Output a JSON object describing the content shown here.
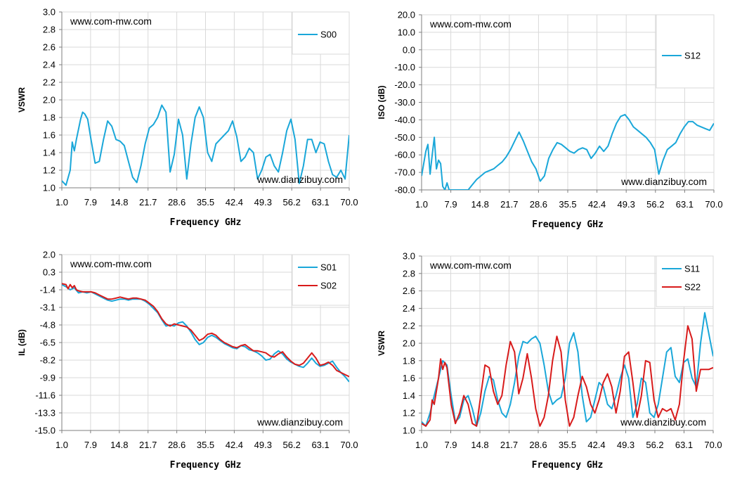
{
  "chart_data": [
    {
      "type": "line",
      "watermark_top": "www.com-mw.com",
      "watermark_bottom": "www.dianzibuy.com",
      "xlabel": "Frequency GHz",
      "ylabel": "VSWR",
      "xlim": [
        1.0,
        70.0
      ],
      "ylim": [
        1.0,
        3.0
      ],
      "x_ticks": [
        "1.0",
        "7.9",
        "14.8",
        "21.7",
        "28.6",
        "35.5",
        "42.4",
        "49.3",
        "56.2",
        "63.1",
        "70.0"
      ],
      "y_ticks": [
        "1.0",
        "1.2",
        "1.4",
        "1.6",
        "1.8",
        "2.0",
        "2.2",
        "2.4",
        "2.6",
        "2.8",
        "3.0"
      ],
      "grid": true,
      "legend_position": "top-right",
      "series": [
        {
          "name": "S00",
          "color": "#1aa7d9",
          "x": [
            1.0,
            2.0,
            3.0,
            3.5,
            4.0,
            4.5,
            5.5,
            6.0,
            6.5,
            7.2,
            8.0,
            9.0,
            10.0,
            11.0,
            12.0,
            13.0,
            14.0,
            15.0,
            16.0,
            17.0,
            18.0,
            19.0,
            20.0,
            21.0,
            22.0,
            23.0,
            24.0,
            25.0,
            26.0,
            27.0,
            28.0,
            29.0,
            30.0,
            31.0,
            32.0,
            33.0,
            34.0,
            35.0,
            36.0,
            37.0,
            38.0,
            39.0,
            40.0,
            41.0,
            42.0,
            43.0,
            44.0,
            45.0,
            46.0,
            47.0,
            48.0,
            49.0,
            50.0,
            51.0,
            52.0,
            53.0,
            54.0,
            55.0,
            56.0,
            57.0,
            58.0,
            59.0,
            60.0,
            61.0,
            62.0,
            63.0,
            64.0,
            65.0,
            66.0,
            67.0,
            68.0,
            69.0,
            70.0
          ],
          "values": [
            1.08,
            1.03,
            1.2,
            1.52,
            1.42,
            1.55,
            1.78,
            1.86,
            1.84,
            1.78,
            1.55,
            1.28,
            1.3,
            1.55,
            1.76,
            1.7,
            1.55,
            1.53,
            1.48,
            1.3,
            1.12,
            1.06,
            1.25,
            1.5,
            1.68,
            1.72,
            1.8,
            1.94,
            1.86,
            1.18,
            1.38,
            1.78,
            1.6,
            1.1,
            1.5,
            1.8,
            1.92,
            1.8,
            1.4,
            1.3,
            1.5,
            1.55,
            1.6,
            1.65,
            1.76,
            1.58,
            1.3,
            1.35,
            1.45,
            1.4,
            1.1,
            1.2,
            1.35,
            1.38,
            1.25,
            1.18,
            1.4,
            1.65,
            1.78,
            1.55,
            1.05,
            1.25,
            1.55,
            1.55,
            1.4,
            1.52,
            1.5,
            1.3,
            1.15,
            1.12,
            1.2,
            1.1,
            1.6
          ]
        }
      ]
    },
    {
      "type": "line",
      "watermark_top": "www.com-mw.com",
      "watermark_bottom": "www.dianzibuy.com",
      "xlabel": "Frequency GHz",
      "ylabel": "ISO (dB)",
      "xlim": [
        1.0,
        70.0
      ],
      "ylim": [
        -80.0,
        20.0
      ],
      "x_ticks": [
        "1.0",
        "7.9",
        "14.8",
        "21.7",
        "28.6",
        "35.5",
        "42.4",
        "49.3",
        "56.2",
        "63.1",
        "70.0"
      ],
      "y_ticks": [
        "-80.0",
        "-70.0",
        "-60.0",
        "-50.0",
        "-40.0",
        "-30.0",
        "-20.0",
        "-10.0",
        "0.0",
        "10.0",
        "20.0"
      ],
      "grid": true,
      "legend_position": "top-right",
      "series": [
        {
          "name": "S12",
          "color": "#1aa7d9",
          "x": [
            1.0,
            2.0,
            2.5,
            3.0,
            3.5,
            4.0,
            4.5,
            5.0,
            5.5,
            6.0,
            6.5,
            7.0,
            7.5,
            9.0,
            11.0,
            12.0,
            13.0,
            14.0,
            15.0,
            16.0,
            17.0,
            18.0,
            19.0,
            20.0,
            21.0,
            22.0,
            23.0,
            24.0,
            25.0,
            26.0,
            27.0,
            28.0,
            29.0,
            30.0,
            31.0,
            32.0,
            33.0,
            34.0,
            35.0,
            36.0,
            37.0,
            38.0,
            39.0,
            40.0,
            41.0,
            42.0,
            43.0,
            44.0,
            45.0,
            46.0,
            47.0,
            48.0,
            49.0,
            50.0,
            51.0,
            52.0,
            53.0,
            54.0,
            55.0,
            56.0,
            57.0,
            58.0,
            59.0,
            60.0,
            61.0,
            62.0,
            63.0,
            64.0,
            65.0,
            66.0,
            67.0,
            68.0,
            69.0,
            70.0
          ],
          "values": [
            -72,
            -58,
            -54,
            -71,
            -60,
            -50,
            -68,
            -63,
            -65,
            -78,
            -80,
            -76,
            -80,
            -80,
            -80,
            -80,
            -77,
            -74,
            -72,
            -70,
            -69,
            -68,
            -66,
            -64,
            -61,
            -57,
            -52,
            -47,
            -52,
            -58,
            -64,
            -68,
            -75,
            -72,
            -62,
            -57,
            -53,
            -54,
            -56,
            -58,
            -59,
            -57,
            -56,
            -57,
            -62,
            -59,
            -55,
            -58,
            -55,
            -48,
            -42,
            -38,
            -37,
            -40,
            -44,
            -46,
            -48,
            -50,
            -53,
            -57,
            -71,
            -63,
            -57,
            -55,
            -53,
            -48,
            -44,
            -41,
            -41,
            -43,
            -44,
            -45,
            -46,
            -42
          ]
        }
      ]
    },
    {
      "type": "line",
      "watermark_top": "www.com-mw.com",
      "watermark_bottom": "www.dianzibuy.com",
      "xlabel": "Frequency GHz",
      "ylabel": "IL (dB)",
      "xlim": [
        1.0,
        70.0
      ],
      "ylim": [
        -15.0,
        2.0
      ],
      "x_ticks": [
        "1.0",
        "7.9",
        "14.8",
        "21.7",
        "28.6",
        "35.5",
        "42.4",
        "49.3",
        "56.2",
        "63.1",
        "70.0"
      ],
      "y_ticks": [
        "-15.0",
        "-13.3",
        "-11.6",
        "-9.9",
        "-8.2",
        "-6.5",
        "-4.8",
        "-3.1",
        "-1.4",
        "0.3",
        "2.0"
      ],
      "grid": true,
      "legend_position": "top-right",
      "series": [
        {
          "name": "S01",
          "color": "#1aa7d9",
          "x": [
            1.0,
            2.0,
            3.0,
            4.0,
            5.0,
            6.0,
            7.0,
            8.0,
            9.0,
            10.0,
            11.0,
            12.0,
            13.0,
            14.0,
            15.0,
            16.0,
            17.0,
            18.0,
            19.0,
            20.0,
            21.0,
            22.0,
            23.0,
            24.0,
            25.0,
            26.0,
            27.0,
            28.0,
            29.0,
            30.0,
            31.0,
            32.0,
            33.0,
            34.0,
            35.0,
            36.0,
            37.0,
            38.0,
            39.0,
            40.0,
            41.0,
            42.0,
            43.0,
            44.0,
            45.0,
            46.0,
            47.0,
            48.0,
            49.0,
            50.0,
            51.0,
            52.0,
            53.0,
            54.0,
            55.0,
            56.0,
            57.0,
            58.0,
            59.0,
            60.0,
            61.0,
            62.0,
            63.0,
            64.0,
            65.0,
            66.0,
            67.0,
            68.0,
            69.0,
            70.0
          ],
          "values": [
            -0.9,
            -1.1,
            -1.4,
            -1.2,
            -1.7,
            -1.6,
            -1.7,
            -1.6,
            -1.8,
            -2.0,
            -2.2,
            -2.4,
            -2.5,
            -2.4,
            -2.3,
            -2.3,
            -2.4,
            -2.3,
            -2.3,
            -2.3,
            -2.5,
            -2.8,
            -3.2,
            -3.6,
            -4.3,
            -4.9,
            -4.8,
            -4.9,
            -4.6,
            -4.5,
            -4.9,
            -5.5,
            -6.2,
            -6.7,
            -6.5,
            -6.0,
            -5.8,
            -6.0,
            -6.3,
            -6.6,
            -6.8,
            -7.0,
            -7.1,
            -6.8,
            -6.9,
            -7.2,
            -7.3,
            -7.5,
            -7.8,
            -8.2,
            -8.1,
            -7.6,
            -7.3,
            -7.6,
            -8.1,
            -8.4,
            -8.6,
            -8.8,
            -8.9,
            -8.5,
            -8.0,
            -8.5,
            -8.8,
            -8.7,
            -8.5,
            -8.3,
            -8.9,
            -9.4,
            -9.8,
            -10.3
          ]
        },
        {
          "name": "S02",
          "color": "#d81b1b",
          "x": [
            1.0,
            2.0,
            2.5,
            3.0,
            3.5,
            4.0,
            4.5,
            5.0,
            6.0,
            7.0,
            8.0,
            9.0,
            10.0,
            11.0,
            12.0,
            13.0,
            14.0,
            15.0,
            16.0,
            17.0,
            18.0,
            19.0,
            20.0,
            21.0,
            22.0,
            23.0,
            24.0,
            25.0,
            26.0,
            27.0,
            28.0,
            29.0,
            30.0,
            31.0,
            32.0,
            33.0,
            34.0,
            35.0,
            36.0,
            37.0,
            38.0,
            39.0,
            40.0,
            41.0,
            42.0,
            43.0,
            44.0,
            45.0,
            46.0,
            47.0,
            48.0,
            49.0,
            50.0,
            51.0,
            52.0,
            53.0,
            54.0,
            55.0,
            56.0,
            57.0,
            58.0,
            59.0,
            60.0,
            61.0,
            62.0,
            63.0,
            64.0,
            65.0,
            66.0,
            67.0,
            68.0,
            69.0,
            70.0
          ],
          "values": [
            -0.8,
            -0.9,
            -1.3,
            -0.9,
            -1.2,
            -1.0,
            -1.4,
            -1.5,
            -1.6,
            -1.6,
            -1.6,
            -1.7,
            -1.9,
            -2.1,
            -2.3,
            -2.3,
            -2.2,
            -2.1,
            -2.2,
            -2.3,
            -2.2,
            -2.2,
            -2.3,
            -2.4,
            -2.7,
            -3.0,
            -3.5,
            -4.2,
            -4.7,
            -4.9,
            -4.7,
            -4.8,
            -4.9,
            -5.0,
            -5.3,
            -5.8,
            -6.3,
            -6.1,
            -5.7,
            -5.6,
            -5.8,
            -6.2,
            -6.5,
            -6.7,
            -6.9,
            -7.0,
            -6.8,
            -6.7,
            -7.0,
            -7.3,
            -7.3,
            -7.4,
            -7.5,
            -7.8,
            -7.9,
            -7.6,
            -7.4,
            -7.9,
            -8.3,
            -8.6,
            -8.7,
            -8.5,
            -8.0,
            -7.5,
            -8.0,
            -8.7,
            -8.6,
            -8.4,
            -8.7,
            -9.2,
            -9.4,
            -9.6,
            -9.8
          ]
        }
      ]
    },
    {
      "type": "line",
      "watermark_top": "www.com-mw.com",
      "watermark_bottom": "www.dianzibuy.com",
      "xlabel": "Frequency GHz",
      "ylabel": "VSWR",
      "xlim": [
        1.0,
        70.0
      ],
      "ylim": [
        1.0,
        3.0
      ],
      "x_ticks": [
        "1.0",
        "7.9",
        "14.8",
        "21.7",
        "28.6",
        "35.5",
        "42.4",
        "49.3",
        "56.2",
        "63.1",
        "70.0"
      ],
      "y_ticks": [
        "1.0",
        "1.2",
        "1.4",
        "1.6",
        "1.8",
        "2.0",
        "2.2",
        "2.4",
        "2.6",
        "2.8",
        "3.0"
      ],
      "grid": true,
      "legend_position": "top-right",
      "series": [
        {
          "name": "S11",
          "color": "#1aa7d9",
          "x": [
            1.0,
            2.0,
            3.0,
            4.0,
            5.0,
            6.0,
            7.0,
            8.0,
            9.0,
            10.0,
            11.0,
            12.0,
            13.0,
            14.0,
            15.0,
            16.0,
            17.0,
            18.0,
            19.0,
            20.0,
            21.0,
            22.0,
            23.0,
            24.0,
            25.0,
            26.0,
            27.0,
            28.0,
            29.0,
            30.0,
            31.0,
            32.0,
            33.0,
            34.0,
            35.0,
            36.0,
            37.0,
            38.0,
            39.0,
            40.0,
            41.0,
            42.0,
            43.0,
            44.0,
            45.0,
            46.0,
            47.0,
            48.0,
            49.0,
            50.0,
            51.0,
            52.0,
            53.0,
            54.0,
            55.0,
            56.0,
            57.0,
            58.0,
            59.0,
            60.0,
            61.0,
            62.0,
            63.0,
            64.0,
            65.0,
            66.0,
            67.0,
            68.0,
            69.0,
            70.0
          ],
          "values": [
            1.1,
            1.05,
            1.2,
            1.4,
            1.6,
            1.8,
            1.75,
            1.4,
            1.1,
            1.15,
            1.35,
            1.4,
            1.25,
            1.05,
            1.2,
            1.45,
            1.62,
            1.58,
            1.35,
            1.2,
            1.15,
            1.3,
            1.55,
            1.85,
            2.02,
            2.0,
            2.05,
            2.08,
            2.0,
            1.75,
            1.45,
            1.3,
            1.35,
            1.38,
            1.6,
            2.0,
            2.12,
            1.9,
            1.4,
            1.1,
            1.15,
            1.35,
            1.55,
            1.5,
            1.3,
            1.25,
            1.4,
            1.6,
            1.75,
            1.6,
            1.15,
            1.3,
            1.6,
            1.55,
            1.2,
            1.15,
            1.3,
            1.6,
            1.9,
            1.95,
            1.62,
            1.55,
            1.78,
            1.82,
            1.6,
            1.5,
            2.0,
            2.35,
            2.1,
            1.85
          ]
        },
        {
          "name": "S22",
          "color": "#d81b1b",
          "x": [
            1.0,
            2.0,
            3.0,
            3.5,
            4.0,
            5.0,
            5.5,
            6.0,
            6.5,
            7.0,
            8.0,
            9.0,
            10.0,
            11.0,
            12.0,
            13.0,
            14.0,
            15.0,
            16.0,
            17.0,
            18.0,
            19.0,
            20.0,
            21.0,
            22.0,
            23.0,
            24.0,
            25.0,
            26.0,
            27.0,
            28.0,
            29.0,
            30.0,
            31.0,
            32.0,
            33.0,
            34.0,
            35.0,
            36.0,
            37.0,
            38.0,
            39.0,
            40.0,
            41.0,
            42.0,
            43.0,
            44.0,
            45.0,
            46.0,
            47.0,
            48.0,
            49.0,
            50.0,
            51.0,
            52.0,
            53.0,
            54.0,
            55.0,
            56.0,
            57.0,
            58.0,
            59.0,
            60.0,
            61.0,
            62.0,
            63.0,
            64.0,
            65.0,
            66.0,
            67.0,
            68.0,
            69.0,
            70.0
          ],
          "values": [
            1.08,
            1.05,
            1.12,
            1.35,
            1.3,
            1.6,
            1.82,
            1.7,
            1.78,
            1.72,
            1.3,
            1.08,
            1.2,
            1.4,
            1.3,
            1.08,
            1.05,
            1.4,
            1.75,
            1.72,
            1.45,
            1.3,
            1.4,
            1.75,
            2.02,
            1.9,
            1.42,
            1.6,
            1.88,
            1.6,
            1.25,
            1.05,
            1.15,
            1.4,
            1.8,
            2.08,
            1.9,
            1.35,
            1.05,
            1.15,
            1.4,
            1.62,
            1.5,
            1.3,
            1.2,
            1.35,
            1.55,
            1.65,
            1.5,
            1.2,
            1.45,
            1.85,
            1.9,
            1.55,
            1.15,
            1.4,
            1.8,
            1.78,
            1.35,
            1.15,
            1.25,
            1.22,
            1.25,
            1.12,
            1.3,
            1.8,
            2.2,
            2.05,
            1.45,
            1.7,
            1.7,
            1.7,
            1.72
          ]
        }
      ]
    }
  ]
}
